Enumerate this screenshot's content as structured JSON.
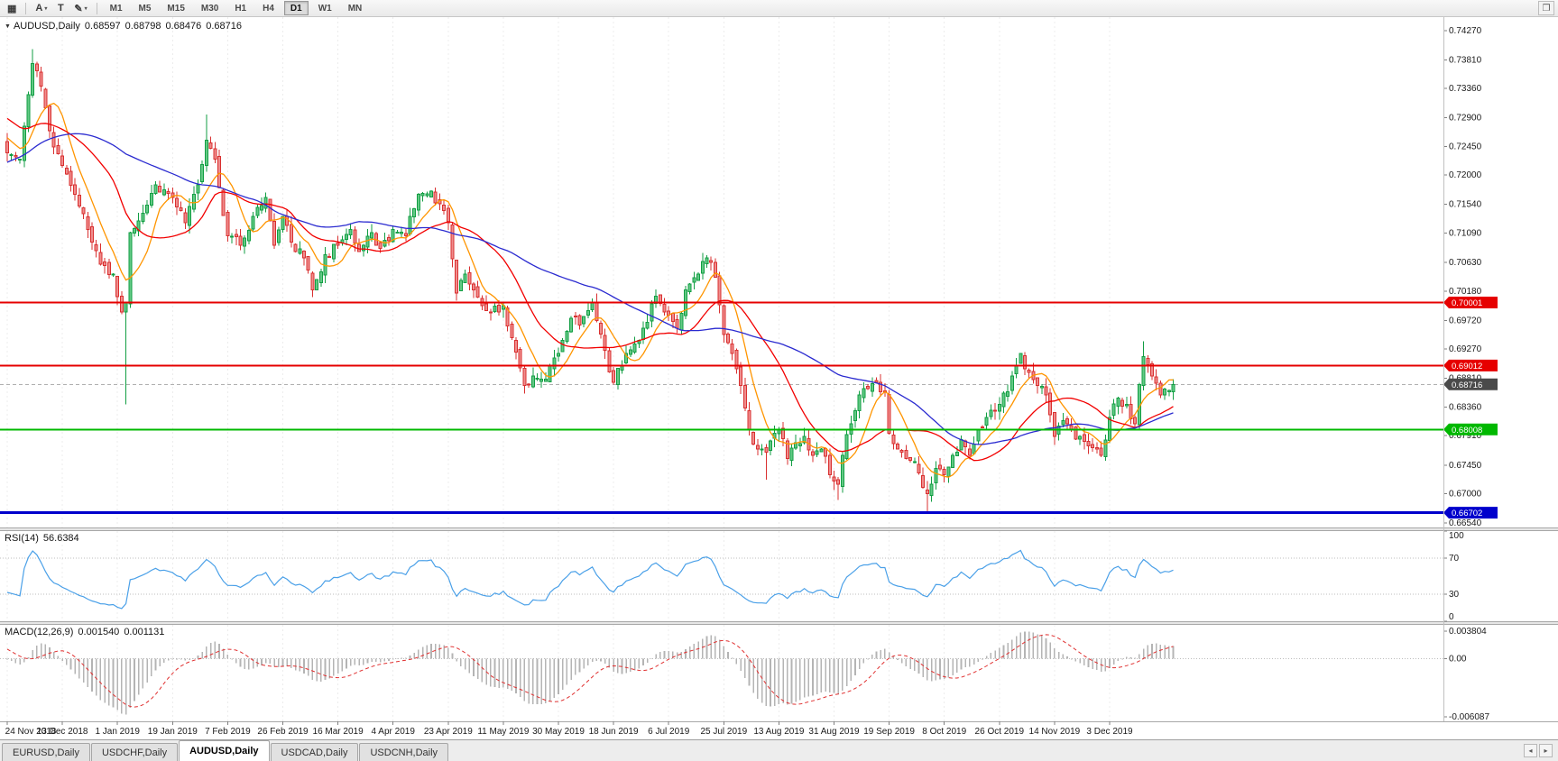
{
  "toolbar": {
    "tools": [
      {
        "name": "charts-grid-icon",
        "glyph": "▦",
        "dropdown": false
      },
      {
        "name": "cursor-tool-icon",
        "glyph": "A",
        "dropdown": true
      },
      {
        "name": "text-tool-icon",
        "glyph": "T",
        "dropdown": false
      },
      {
        "name": "draw-tool-icon",
        "glyph": "✎",
        "dropdown": true
      }
    ],
    "timeframes": [
      "M1",
      "M5",
      "M15",
      "M30",
      "H1",
      "H4",
      "D1",
      "W1",
      "MN"
    ],
    "active_timeframe": "D1",
    "restore_icon_glyph": "❐"
  },
  "chart": {
    "title": {
      "arrow_glyph": "▼",
      "symbol": "AUDUSD,Daily",
      "open": "0.68597",
      "high": "0.68798",
      "low": "0.68476",
      "close": "0.68716"
    }
  },
  "indicators": {
    "rsi": {
      "label": "RSI(14)",
      "value": "56.6384"
    },
    "macd": {
      "label": "MACD(12,26,9)",
      "value_main": "0.001540",
      "value_signal": "0.001131"
    }
  },
  "tabs": {
    "items": [
      {
        "label": "EURUSD,Daily",
        "active": false
      },
      {
        "label": "USDCHF,Daily",
        "active": false
      },
      {
        "label": "AUDUSD,Daily",
        "active": true
      },
      {
        "label": "USDCAD,Daily",
        "active": false
      },
      {
        "label": "USDCNH,Daily",
        "active": false
      }
    ],
    "scroll_left": "◂",
    "scroll_right": "▸"
  },
  "chart_data": {
    "type": "candlestick",
    "symbol": "AUDUSD",
    "period": "Daily",
    "ohlc_last": {
      "open": 0.68597,
      "high": 0.68798,
      "low": 0.68476,
      "close": 0.68716
    },
    "ylim": [
      0.6647,
      0.7448
    ],
    "y_axis_labels": [
      "0.74270",
      "0.73810",
      "0.73360",
      "0.72900",
      "0.72450",
      "0.72000",
      "0.71540",
      "0.71090",
      "0.70630",
      "0.70180",
      "0.69720",
      "0.69270",
      "0.68810",
      "0.68360",
      "0.67910",
      "0.67450",
      "0.67000",
      "0.66540"
    ],
    "x_axis_labels": [
      "24 Nov 2018",
      "13 Dec 2018",
      "1 Jan 2019",
      "19 Jan 2019",
      "7 Feb 2019",
      "26 Feb 2019",
      "16 Mar 2019",
      "4 Apr 2019",
      "23 Apr 2019",
      "11 May 2019",
      "30 May 2019",
      "18 Jun 2019",
      "6 Jul 2019",
      "25 Jul 2019",
      "13 Aug 2019",
      "31 Aug 2019",
      "19 Sep 2019",
      "8 Oct 2019",
      "26 Oct 2019",
      "14 Nov 2019",
      "3 Dec 2019"
    ],
    "candles_per_tick": 13,
    "candles_count": 276,
    "price_path_anchors": [
      [
        0,
        0.7235
      ],
      [
        3,
        0.7225
      ],
      [
        6,
        0.7375
      ],
      [
        8,
        0.734
      ],
      [
        10,
        0.727
      ],
      [
        13,
        0.7215
      ],
      [
        16,
        0.717
      ],
      [
        19,
        0.7115
      ],
      [
        22,
        0.706
      ],
      [
        25,
        0.7045
      ],
      [
        27,
        0.6985
      ],
      [
        28,
        0.7
      ],
      [
        29,
        0.711
      ],
      [
        32,
        0.714
      ],
      [
        35,
        0.7185
      ],
      [
        39,
        0.7165
      ],
      [
        42,
        0.7125
      ],
      [
        45,
        0.7185
      ],
      [
        47,
        0.7255
      ],
      [
        49,
        0.7225
      ],
      [
        52,
        0.7105
      ],
      [
        55,
        0.709
      ],
      [
        58,
        0.7135
      ],
      [
        61,
        0.7165
      ],
      [
        63,
        0.709
      ],
      [
        65,
        0.7135
      ],
      [
        67,
        0.7095
      ],
      [
        70,
        0.707
      ],
      [
        72,
        0.702
      ],
      [
        75,
        0.7075
      ],
      [
        78,
        0.709
      ],
      [
        81,
        0.7115
      ],
      [
        83,
        0.708
      ],
      [
        86,
        0.711
      ],
      [
        88,
        0.7085
      ],
      [
        91,
        0.7115
      ],
      [
        94,
        0.7105
      ],
      [
        97,
        0.717
      ],
      [
        100,
        0.7175
      ],
      [
        102,
        0.7155
      ],
      [
        104,
        0.7125
      ],
      [
        106,
        0.7015
      ],
      [
        108,
        0.7045
      ],
      [
        110,
        0.702
      ],
      [
        112,
        0.6995
      ],
      [
        114,
        0.6985
      ],
      [
        117,
        0.6995
      ],
      [
        119,
        0.6945
      ],
      [
        122,
        0.687
      ],
      [
        124,
        0.6885
      ],
      [
        127,
        0.688
      ],
      [
        130,
        0.692
      ],
      [
        133,
        0.6975
      ],
      [
        135,
        0.6965
      ],
      [
        138,
        0.7
      ],
      [
        141,
        0.6925
      ],
      [
        143,
        0.6875
      ],
      [
        146,
        0.692
      ],
      [
        148,
        0.6935
      ],
      [
        150,
        0.696
      ],
      [
        153,
        0.701
      ],
      [
        155,
        0.6985
      ],
      [
        156,
        0.698
      ],
      [
        158,
        0.696
      ],
      [
        160,
        0.702
      ],
      [
        163,
        0.7045
      ],
      [
        165,
        0.707
      ],
      [
        167,
        0.704
      ],
      [
        169,
        0.695
      ],
      [
        171,
        0.692
      ],
      [
        173,
        0.687
      ],
      [
        175,
        0.68
      ],
      [
        177,
        0.677
      ],
      [
        179,
        0.6765
      ],
      [
        181,
        0.6795
      ],
      [
        182,
        0.68
      ],
      [
        184,
        0.6755
      ],
      [
        186,
        0.678
      ],
      [
        188,
        0.679
      ],
      [
        190,
        0.676
      ],
      [
        192,
        0.677
      ],
      [
        194,
        0.673
      ],
      [
        196,
        0.6715
      ],
      [
        197,
        0.676
      ],
      [
        199,
        0.681
      ],
      [
        201,
        0.6855
      ],
      [
        203,
        0.6865
      ],
      [
        205,
        0.6875
      ],
      [
        207,
        0.686
      ],
      [
        208,
        0.6795
      ],
      [
        210,
        0.677
      ],
      [
        212,
        0.6755
      ],
      [
        214,
        0.675
      ],
      [
        216,
        0.671
      ],
      [
        217,
        0.67
      ],
      [
        219,
        0.674
      ],
      [
        221,
        0.673
      ],
      [
        223,
        0.676
      ],
      [
        225,
        0.6785
      ],
      [
        227,
        0.676
      ],
      [
        229,
        0.68
      ],
      [
        231,
        0.682
      ],
      [
        233,
        0.683
      ],
      [
        234,
        0.684
      ],
      [
        236,
        0.686
      ],
      [
        238,
        0.69
      ],
      [
        239,
        0.692
      ],
      [
        241,
        0.689
      ],
      [
        243,
        0.687
      ],
      [
        245,
        0.6855
      ],
      [
        247,
        0.679
      ],
      [
        249,
        0.6815
      ],
      [
        251,
        0.68
      ],
      [
        253,
        0.679
      ],
      [
        255,
        0.6775
      ],
      [
        257,
        0.677
      ],
      [
        258,
        0.676
      ],
      [
        260,
        0.682
      ],
      [
        262,
        0.685
      ],
      [
        264,
        0.684
      ],
      [
        266,
        0.681
      ],
      [
        268,
        0.6915
      ],
      [
        270,
        0.6885
      ],
      [
        272,
        0.6855
      ],
      [
        274,
        0.6862
      ],
      [
        275,
        0.68716
      ]
    ],
    "pre_history_anchors": [
      [
        0,
        0.704
      ],
      [
        20,
        0.714
      ],
      [
        40,
        0.733
      ],
      [
        52,
        0.7285
      ],
      [
        59,
        0.7245
      ]
    ],
    "candle_overrides": {
      "6": {
        "h": 0.7398
      },
      "28": {
        "o": 0.6985,
        "c": 0.7,
        "l": 0.684
      },
      "47": {
        "h": 0.7295
      },
      "122": {
        "l": 0.6857
      },
      "179": {
        "l": 0.6722
      },
      "196": {
        "l": 0.669
      },
      "217": {
        "l": 0.6671
      },
      "268": {
        "h": 0.6939
      },
      "275": {
        "o": 0.68597,
        "h": 0.68798,
        "l": 0.68476,
        "c": 0.68716
      }
    },
    "noise": {
      "seed": 11,
      "close_amp": 0.0009,
      "wick_amp": 0.0014,
      "gap_amp": 0.0005
    },
    "levels": [
      {
        "label": "0.70001",
        "price": 0.70001,
        "color": "#e60000",
        "line_width": 2
      },
      {
        "label": "0.69012",
        "price": 0.69012,
        "color": "#e60000",
        "line_width": 2
      },
      {
        "label": "0.68008",
        "price": 0.68008,
        "color": "#00b800",
        "line_width": 2
      },
      {
        "label": "0.66702",
        "price": 0.66702,
        "color": "#0000cc",
        "line_width": 3
      }
    ],
    "current_price": 0.68716,
    "current_price_label": "0.68716",
    "current_price_tag_color": "#4a4a4a",
    "candle_colors": {
      "up_border": "#129e43",
      "up_fill": "#63c985",
      "down_border": "#d93030",
      "down_fill": "#ef8d8d"
    },
    "moving_averages": [
      {
        "period": 8,
        "color": "#ff9500"
      },
      {
        "period": 21,
        "color": "#f20000"
      },
      {
        "period": 55,
        "color": "#2b2bd0"
      }
    ],
    "rsi": {
      "period": 14,
      "levels": [
        70,
        30
      ],
      "axis_labels": [
        "100",
        "70",
        "30",
        "0"
      ],
      "line_color": "#4aa0e8"
    },
    "macd": {
      "fast": 12,
      "slow": 26,
      "signal": 9,
      "axis_labels": [
        "0.003804",
        "0.00",
        "-0.006087"
      ],
      "hist_color": "#b4b4b4",
      "signal_color": "#e03030"
    }
  }
}
